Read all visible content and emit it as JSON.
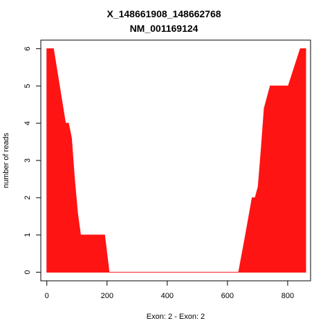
{
  "chart_data": {
    "type": "area",
    "title": "X_148661908_148662768",
    "subtitle": "NM_001169124",
    "xlabel": "Exon: 2 - Exon: 2",
    "ylabel": "number of reads",
    "xlim": [
      -20,
      876
    ],
    "ylim": [
      -0.23,
      6.23
    ],
    "xticks": [
      0,
      200,
      400,
      600,
      800
    ],
    "yticks": [
      0,
      1,
      2,
      3,
      4,
      5,
      6
    ],
    "grid": false,
    "fill_color": "#ff1414",
    "series": [
      {
        "x": [
          0,
          22,
          62,
          72,
          82,
          92,
          102,
          112,
          122,
          142,
          162,
          192,
          207,
          250,
          300,
          400,
          500,
          600,
          637,
          660,
          682,
          692,
          702,
          712,
          722,
          742,
          762,
          782,
          802,
          842,
          860
        ],
        "values": [
          6,
          6,
          4,
          4,
          3.6,
          2.5,
          1.6,
          1,
          1,
          1,
          1,
          1,
          0,
          0,
          0,
          0,
          0,
          0,
          0,
          1,
          2,
          2,
          2.3,
          3.3,
          4.4,
          5,
          5,
          5,
          5,
          6,
          6
        ]
      }
    ]
  }
}
